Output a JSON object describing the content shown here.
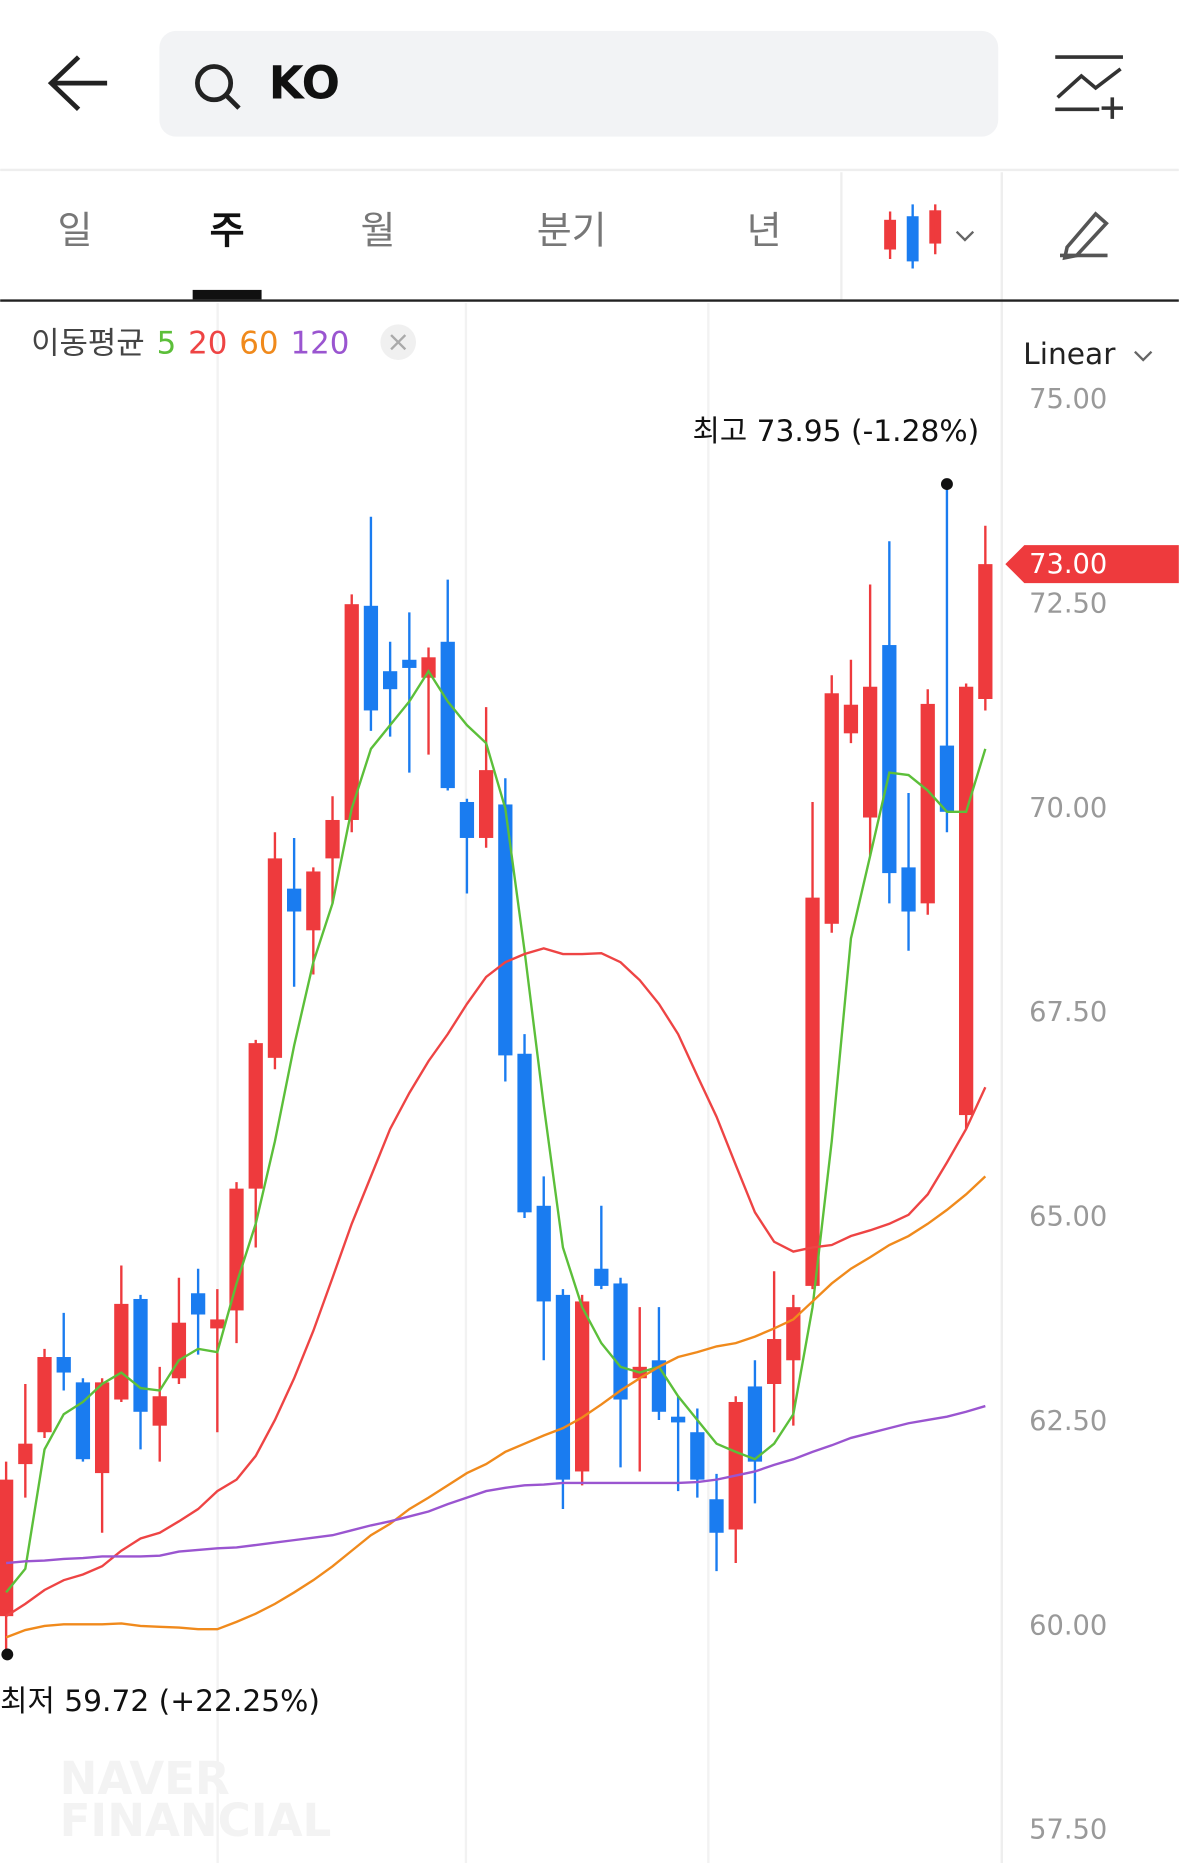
{
  "header": {
    "search": "KO"
  },
  "tabs": [
    "일",
    "주",
    "월",
    "분기",
    "년"
  ],
  "ma_legend": {
    "label": "이동평균"
  },
  "scale_mode": "Linear",
  "watermark": [
    "NAVER",
    "FINANCIAL"
  ],
  "chart_data": {
    "type": "candlestick",
    "up_color": "#ee3a3d",
    "down_color": "#1a7cf0",
    "open": [
      60.13,
      61.99,
      62.38,
      63.3,
      62.99,
      61.88,
      62.78,
      64.01,
      62.46,
      63.04,
      64.08,
      63.65,
      63.87,
      65.36,
      66.96,
      69.03,
      68.52,
      69.4,
      69.87,
      72.49,
      71.69,
      71.83,
      71.61,
      72.05,
      70.09,
      69.65,
      70.06,
      67.01,
      65.15,
      64.06,
      61.9,
      64.38,
      64.2,
      63.04,
      63.26,
      62.57,
      62.38,
      61.56,
      61.19,
      62.94,
      62.97,
      63.26,
      64.17,
      68.6,
      70.93,
      69.9,
      72.01,
      69.29,
      68.85,
      70.78,
      66.26,
      71.35
    ],
    "high": [
      62.02,
      62.97,
      63.4,
      63.84,
      63.04,
      63.04,
      64.42,
      64.06,
      63.18,
      64.27,
      64.38,
      64.13,
      65.44,
      67.18,
      69.72,
      69.65,
      69.29,
      70.16,
      72.63,
      73.58,
      72.05,
      72.41,
      71.98,
      72.81,
      70.13,
      71.25,
      70.38,
      67.25,
      65.51,
      64.13,
      64.06,
      65.15,
      64.27,
      63.91,
      63.91,
      62.82,
      62.67,
      61.87,
      62.82,
      63.26,
      64.35,
      64.06,
      70.09,
      71.64,
      71.83,
      72.75,
      73.28,
      70.2,
      71.47,
      73.95,
      71.54,
      73.47
    ],
    "low": [
      59.72,
      61.58,
      62.31,
      62.89,
      62.02,
      61.15,
      62.75,
      62.17,
      62.02,
      62.97,
      63.33,
      62.38,
      63.47,
      64.64,
      66.82,
      67.83,
      67.98,
      68.85,
      69.72,
      70.96,
      70.89,
      70.45,
      70.67,
      70.23,
      68.97,
      69.53,
      66.67,
      65.0,
      63.26,
      61.44,
      61.73,
      64.13,
      61.95,
      61.9,
      62.53,
      61.66,
      61.58,
      60.68,
      60.78,
      61.51,
      62.38,
      62.46,
      64.13,
      68.49,
      70.81,
      69.43,
      68.85,
      68.27,
      68.71,
      69.72,
      66.09,
      71.21
    ],
    "close": [
      61.8,
      62.24,
      63.3,
      63.11,
      62.05,
      62.99,
      63.95,
      62.63,
      62.82,
      63.72,
      63.82,
      63.76,
      65.36,
      67.14,
      69.4,
      68.75,
      69.24,
      69.87,
      72.51,
      71.21,
      71.47,
      71.73,
      71.86,
      70.26,
      69.65,
      70.48,
      66.99,
      65.07,
      63.98,
      61.8,
      63.98,
      64.17,
      62.78,
      63.18,
      62.63,
      62.5,
      61.8,
      61.15,
      62.75,
      62.02,
      63.52,
      63.91,
      68.92,
      71.42,
      71.28,
      71.5,
      69.22,
      68.75,
      71.29,
      69.97,
      71.5,
      73.0
    ],
    "series": [
      {
        "name": "5",
        "color": "#5cbf3a",
        "values": [
          60.42,
          60.71,
          62.17,
          62.6,
          62.75,
          62.97,
          63.11,
          62.92,
          62.89,
          63.26,
          63.4,
          63.36,
          64.2,
          64.93,
          65.94,
          67.11,
          68.13,
          68.85,
          70.01,
          70.74,
          71.03,
          71.32,
          71.69,
          71.32,
          71.03,
          70.81,
          70.01,
          68.27,
          66.38,
          64.64,
          63.91,
          63.47,
          63.18,
          63.11,
          63.18,
          62.82,
          62.53,
          62.24,
          62.14,
          62.05,
          62.24,
          62.6,
          63.91,
          65.94,
          68.42,
          69.43,
          70.45,
          70.42,
          70.23,
          69.97,
          69.97,
          70.74
        ]
      },
      {
        "name": "20",
        "color": "#ee4444",
        "values": [
          60.13,
          60.28,
          60.45,
          60.57,
          60.64,
          60.74,
          60.93,
          61.08,
          61.15,
          61.29,
          61.44,
          61.66,
          61.8,
          62.09,
          62.53,
          63.04,
          63.62,
          64.27,
          64.93,
          65.51,
          66.09,
          66.53,
          66.92,
          67.25,
          67.62,
          67.95,
          68.13,
          68.23,
          68.3,
          68.23,
          68.23,
          68.24,
          68.13,
          67.91,
          67.62,
          67.25,
          66.74,
          66.24,
          65.65,
          65.07,
          64.71,
          64.59,
          64.64,
          64.67,
          64.78,
          64.85,
          64.93,
          65.04,
          65.29,
          65.68,
          66.09,
          66.6
        ]
      },
      {
        "name": "60",
        "color": "#f08a1c",
        "values": [
          59.87,
          59.96,
          60.01,
          60.03,
          60.03,
          60.03,
          60.04,
          60.01,
          60.0,
          59.99,
          59.97,
          59.97,
          60.06,
          60.16,
          60.28,
          60.42,
          60.57,
          60.74,
          60.93,
          61.12,
          61.26,
          61.44,
          61.58,
          61.73,
          61.88,
          61.99,
          62.14,
          62.24,
          62.34,
          62.43,
          62.56,
          62.72,
          62.89,
          63.04,
          63.18,
          63.3,
          63.36,
          63.43,
          63.47,
          63.55,
          63.65,
          63.76,
          63.98,
          64.2,
          64.38,
          64.52,
          64.67,
          64.78,
          64.93,
          65.1,
          65.29,
          65.51
        ]
      },
      {
        "name": "120",
        "color": "#9a55d0",
        "values": [
          60.78,
          60.8,
          60.81,
          60.83,
          60.84,
          60.86,
          60.86,
          60.86,
          60.87,
          60.92,
          60.94,
          60.96,
          60.97,
          61.0,
          61.03,
          61.06,
          61.09,
          61.12,
          61.18,
          61.24,
          61.29,
          61.35,
          61.41,
          61.5,
          61.58,
          61.66,
          61.7,
          61.73,
          61.74,
          61.76,
          61.76,
          61.76,
          61.76,
          61.76,
          61.76,
          61.76,
          61.77,
          61.8,
          61.85,
          61.9,
          61.98,
          62.05,
          62.14,
          62.22,
          62.31,
          62.37,
          62.43,
          62.49,
          62.53,
          62.57,
          62.63,
          62.7
        ]
      }
    ],
    "ylim": [
      57.11,
      75.25
    ],
    "yticks": [
      {
        "value": 57.5,
        "label": "57.50"
      },
      {
        "value": 60,
        "label": "60.00"
      },
      {
        "value": 62.5,
        "label": "62.50"
      },
      {
        "value": 65,
        "label": "65.00"
      },
      {
        "value": 67.5,
        "label": "67.50"
      },
      {
        "value": 70,
        "label": "70.00"
      },
      {
        "value": 72.5,
        "label": "72.50"
      },
      {
        "value": 75,
        "label": "75.00"
      }
    ],
    "current_price": {
      "value": 73,
      "label": "73.00"
    },
    "annotations": {
      "high": "최고 73.95 (-1.28%)",
      "low": "최저 59.72 (+22.25%)"
    }
  }
}
